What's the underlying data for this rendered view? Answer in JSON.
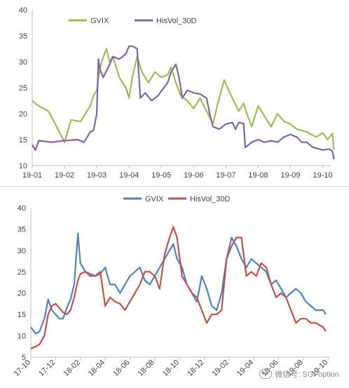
{
  "chart_data": [
    {
      "type": "line",
      "x": [
        "19-01",
        "19-02",
        "19-03",
        "19-04",
        "19-05",
        "19-06",
        "19-07",
        "19-08",
        "19-09",
        "19-10"
      ],
      "xticks": [
        "19-01",
        "19-02",
        "19-03",
        "19-04",
        "19-05",
        "19-06",
        "19-07",
        "19-08",
        "19-09",
        "19-10"
      ],
      "ylim": [
        10,
        40
      ],
      "yticks": [
        10,
        15,
        20,
        25,
        30,
        35,
        40
      ],
      "grid": false,
      "legend_position": "top-left",
      "series": [
        {
          "name": "GVIX",
          "color": "#9bbb59",
          "points": [
            [
              0.0,
              22.5
            ],
            [
              0.2,
              21.5
            ],
            [
              0.5,
              20.5
            ],
            [
              0.8,
              17
            ],
            [
              1.0,
              14.5
            ],
            [
              1.2,
              18.8
            ],
            [
              1.5,
              18.5
            ],
            [
              1.8,
              21.5
            ],
            [
              1.9,
              23.5
            ],
            [
              2.0,
              24.5
            ],
            [
              2.05,
              27
            ],
            [
              2.15,
              30
            ],
            [
              2.3,
              32.5
            ],
            [
              2.4,
              30
            ],
            [
              2.5,
              31
            ],
            [
              2.7,
              27
            ],
            [
              2.9,
              25
            ],
            [
              3.0,
              23
            ],
            [
              3.1,
              27
            ],
            [
              3.25,
              31
            ],
            [
              3.4,
              28
            ],
            [
              3.6,
              26
            ],
            [
              3.8,
              28
            ],
            [
              4.0,
              27
            ],
            [
              4.2,
              27.5
            ],
            [
              4.3,
              29
            ],
            [
              4.45,
              26
            ],
            [
              4.6,
              23.5
            ],
            [
              4.8,
              22.5
            ],
            [
              5.0,
              21
            ],
            [
              5.2,
              23
            ],
            [
              5.4,
              20.5
            ],
            [
              5.6,
              18
            ],
            [
              5.75,
              22
            ],
            [
              5.95,
              26.5
            ],
            [
              6.05,
              25
            ],
            [
              6.2,
              23
            ],
            [
              6.4,
              20.5
            ],
            [
              6.55,
              22
            ],
            [
              6.65,
              20
            ],
            [
              6.8,
              17.5
            ],
            [
              7.0,
              21.5
            ],
            [
              7.2,
              19.5
            ],
            [
              7.4,
              17.5
            ],
            [
              7.6,
              20
            ],
            [
              7.8,
              18.5
            ],
            [
              8.0,
              18
            ],
            [
              8.2,
              17
            ],
            [
              8.5,
              16.5
            ],
            [
              8.8,
              15.5
            ],
            [
              9.0,
              16.3
            ],
            [
              9.15,
              15
            ],
            [
              9.3,
              16.2
            ],
            [
              9.35,
              13
            ]
          ]
        },
        {
          "name": "HisVol_30D",
          "color": "#8064a2",
          "points": [
            [
              0.0,
              14
            ],
            [
              0.1,
              13
            ],
            [
              0.2,
              14.8
            ],
            [
              0.6,
              14.5
            ],
            [
              1.0,
              14.8
            ],
            [
              1.4,
              15
            ],
            [
              1.6,
              14.5
            ],
            [
              1.8,
              16.5
            ],
            [
              1.9,
              16.8
            ],
            [
              2.0,
              20
            ],
            [
              2.05,
              30.5
            ],
            [
              2.1,
              28.5
            ],
            [
              2.2,
              27
            ],
            [
              2.4,
              29.5
            ],
            [
              2.5,
              31
            ],
            [
              2.7,
              30.5
            ],
            [
              2.9,
              31.5
            ],
            [
              3.0,
              33
            ],
            [
              3.1,
              33
            ],
            [
              3.25,
              32.5
            ],
            [
              3.35,
              23
            ],
            [
              3.5,
              24
            ],
            [
              3.7,
              22.5
            ],
            [
              3.9,
              23.5
            ],
            [
              4.2,
              26
            ],
            [
              4.3,
              28
            ],
            [
              4.45,
              29.5
            ],
            [
              4.55,
              27
            ],
            [
              4.65,
              23
            ],
            [
              4.8,
              24.5
            ],
            [
              5.0,
              24
            ],
            [
              5.2,
              23.8
            ],
            [
              5.4,
              23
            ],
            [
              5.5,
              20
            ],
            [
              5.6,
              17.5
            ],
            [
              5.8,
              17
            ],
            [
              6.0,
              18
            ],
            [
              6.2,
              18.3
            ],
            [
              6.3,
              17
            ],
            [
              6.4,
              18.3
            ],
            [
              6.55,
              18.1
            ],
            [
              6.6,
              13.5
            ],
            [
              6.8,
              14.5
            ],
            [
              7.0,
              15
            ],
            [
              7.2,
              14.5
            ],
            [
              7.4,
              14.8
            ],
            [
              7.6,
              14.5
            ],
            [
              7.8,
              15.5
            ],
            [
              8.0,
              16
            ],
            [
              8.2,
              15.5
            ],
            [
              8.35,
              14.5
            ],
            [
              8.5,
              14.5
            ],
            [
              8.7,
              13.5
            ],
            [
              9.0,
              13
            ],
            [
              9.2,
              13.2
            ],
            [
              9.3,
              12.8
            ],
            [
              9.35,
              11.2
            ]
          ]
        }
      ]
    },
    {
      "type": "line",
      "x": [
        "17-10",
        "17-12",
        "18-02",
        "18-04",
        "18-06",
        "18-08",
        "18-10",
        "18-12",
        "19-02",
        "19-04",
        "19-06",
        "19-08",
        "19-10"
      ],
      "xticks": [
        "17-10",
        "17-12",
        "18-02",
        "18-04",
        "18-06",
        "18-08",
        "18-10",
        "18-12",
        "19-02",
        "19-04",
        "19-06",
        "19-08",
        "19-10"
      ],
      "ylim": [
        5,
        40
      ],
      "yticks": [
        5,
        10,
        15,
        20,
        25,
        30,
        35,
        40
      ],
      "grid": false,
      "legend_position": "top-center",
      "series": [
        {
          "name": "GVIX",
          "color": "#4f81bd",
          "points": [
            [
              0.0,
              12
            ],
            [
              0.2,
              10.5
            ],
            [
              0.35,
              11
            ],
            [
              0.55,
              14
            ],
            [
              0.7,
              18.5
            ],
            [
              0.85,
              16
            ],
            [
              1.0,
              15
            ],
            [
              1.15,
              14
            ],
            [
              1.3,
              14
            ],
            [
              1.45,
              16.5
            ],
            [
              1.6,
              18.5
            ],
            [
              1.75,
              22
            ],
            [
              1.9,
              34
            ],
            [
              2.0,
              27
            ],
            [
              2.2,
              25
            ],
            [
              2.4,
              24.5
            ],
            [
              2.6,
              24
            ],
            [
              2.8,
              24.5
            ],
            [
              3.0,
              26
            ],
            [
              3.2,
              22
            ],
            [
              3.4,
              22
            ],
            [
              3.6,
              20
            ],
            [
              3.8,
              22
            ],
            [
              4.0,
              24
            ],
            [
              4.2,
              25
            ],
            [
              4.4,
              26
            ],
            [
              4.6,
              23
            ],
            [
              4.8,
              22
            ],
            [
              5.0,
              24
            ],
            [
              5.2,
              26
            ],
            [
              5.4,
              28
            ],
            [
              5.6,
              30
            ],
            [
              5.75,
              31.5
            ],
            [
              5.9,
              28
            ],
            [
              6.1,
              26
            ],
            [
              6.3,
              22
            ],
            [
              6.5,
              20
            ],
            [
              6.7,
              18
            ],
            [
              6.9,
              24
            ],
            [
              7.1,
              21
            ],
            [
              7.3,
              17
            ],
            [
              7.5,
              16
            ],
            [
              7.7,
              20
            ],
            [
              7.9,
              28
            ],
            [
              8.1,
              33
            ],
            [
              8.3,
              31
            ],
            [
              8.5,
              28
            ],
            [
              8.7,
              26
            ],
            [
              8.9,
              28
            ],
            [
              9.1,
              27
            ],
            [
              9.3,
              26
            ],
            [
              9.5,
              25
            ],
            [
              9.7,
              22
            ],
            [
              9.9,
              23
            ],
            [
              10.1,
              21
            ],
            [
              10.3,
              19
            ],
            [
              10.5,
              20
            ],
            [
              10.7,
              21
            ],
            [
              10.9,
              20
            ],
            [
              11.1,
              18
            ],
            [
              11.3,
              17
            ],
            [
              11.5,
              16
            ],
            [
              11.8,
              16
            ],
            [
              11.9,
              15
            ]
          ]
        },
        {
          "name": "HisVol_30D",
          "color": "#c0504d",
          "points": [
            [
              0.0,
              7
            ],
            [
              0.2,
              7.5
            ],
            [
              0.35,
              8
            ],
            [
              0.55,
              10
            ],
            [
              0.7,
              15
            ],
            [
              0.85,
              17
            ],
            [
              1.0,
              17.5
            ],
            [
              1.15,
              16.5
            ],
            [
              1.3,
              15.5
            ],
            [
              1.45,
              15
            ],
            [
              1.6,
              16
            ],
            [
              1.75,
              19
            ],
            [
              1.9,
              23
            ],
            [
              2.0,
              24.5
            ],
            [
              2.2,
              25
            ],
            [
              2.4,
              24
            ],
            [
              2.6,
              24
            ],
            [
              2.8,
              25
            ],
            [
              3.0,
              17
            ],
            [
              3.2,
              19
            ],
            [
              3.4,
              18
            ],
            [
              3.6,
              17.5
            ],
            [
              3.8,
              16
            ],
            [
              4.0,
              18
            ],
            [
              4.2,
              20
            ],
            [
              4.4,
              22
            ],
            [
              4.6,
              25
            ],
            [
              4.8,
              25
            ],
            [
              5.0,
              24
            ],
            [
              5.2,
              21
            ],
            [
              5.4,
              29
            ],
            [
              5.6,
              33
            ],
            [
              5.75,
              35.5
            ],
            [
              5.9,
              33
            ],
            [
              6.1,
              24
            ],
            [
              6.3,
              22
            ],
            [
              6.5,
              20
            ],
            [
              6.7,
              19
            ],
            [
              6.9,
              16
            ],
            [
              7.1,
              13
            ],
            [
              7.3,
              15
            ],
            [
              7.5,
              15
            ],
            [
              7.7,
              16
            ],
            [
              7.9,
              28
            ],
            [
              8.1,
              31
            ],
            [
              8.3,
              33
            ],
            [
              8.5,
              33
            ],
            [
              8.7,
              24
            ],
            [
              8.9,
              25
            ],
            [
              9.1,
              24
            ],
            [
              9.3,
              27
            ],
            [
              9.5,
              26
            ],
            [
              9.7,
              22
            ],
            [
              9.9,
              19
            ],
            [
              10.1,
              20
            ],
            [
              10.3,
              19
            ],
            [
              10.5,
              16
            ],
            [
              10.7,
              13
            ],
            [
              10.9,
              14
            ],
            [
              11.1,
              14
            ],
            [
              11.3,
              13
            ],
            [
              11.5,
              13
            ],
            [
              11.8,
              12
            ],
            [
              11.9,
              11
            ]
          ]
        }
      ]
    }
  ],
  "watermark": "微信号: SGFoption"
}
